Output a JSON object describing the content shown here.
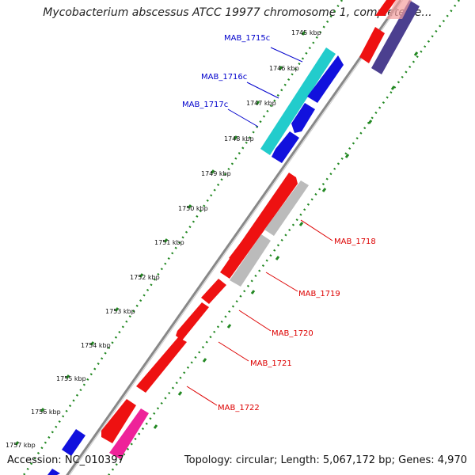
{
  "title": "Mycobacterium abscessus ATCC 19977 chromosome 1, complete se...",
  "footer": {
    "accession": "Accession: NC_010397",
    "summary": "Topology: circular; Length: 5,067,172 bp; Genes: 4,970"
  },
  "kbp_ticks": [
    {
      "label": "1745 kbp"
    },
    {
      "label": "1746 kbp"
    },
    {
      "label": "1747 kbp"
    },
    {
      "label": "1748 kbp"
    },
    {
      "label": "1749 kbp"
    },
    {
      "label": "1750 kbp"
    },
    {
      "label": "1751 kbp"
    },
    {
      "label": "1752 kbp"
    },
    {
      "label": "1753 kbp"
    },
    {
      "label": "1754 kbp"
    },
    {
      "label": "1755 kbp"
    },
    {
      "label": "1756 kbp"
    },
    {
      "label": "1757 kbp"
    }
  ],
  "gene_labels": [
    {
      "text": "MAB_1715c",
      "color": "#0000cc"
    },
    {
      "text": "MAB_1716c",
      "color": "#0000cc"
    },
    {
      "text": "MAB_1717c",
      "color": "#0000cc"
    },
    {
      "text": "MAB_1718",
      "color": "#dd0000"
    },
    {
      "text": "MAB_1719",
      "color": "#dd0000"
    },
    {
      "text": "MAB_1720",
      "color": "#dd0000"
    },
    {
      "text": "MAB_1721",
      "color": "#dd0000"
    },
    {
      "text": "MAB_1722",
      "color": "#dd0000"
    }
  ],
  "colors": {
    "forward_cds": "#ee1111",
    "reverse_cds": "#1111dd",
    "cyan_feature": "#22cccc",
    "gray_feature": "#bbbbbb",
    "pink_feature": "#ee2299",
    "navy_feature": "#4b3f8f",
    "backbone": "#888888",
    "ticks": "#228822"
  }
}
